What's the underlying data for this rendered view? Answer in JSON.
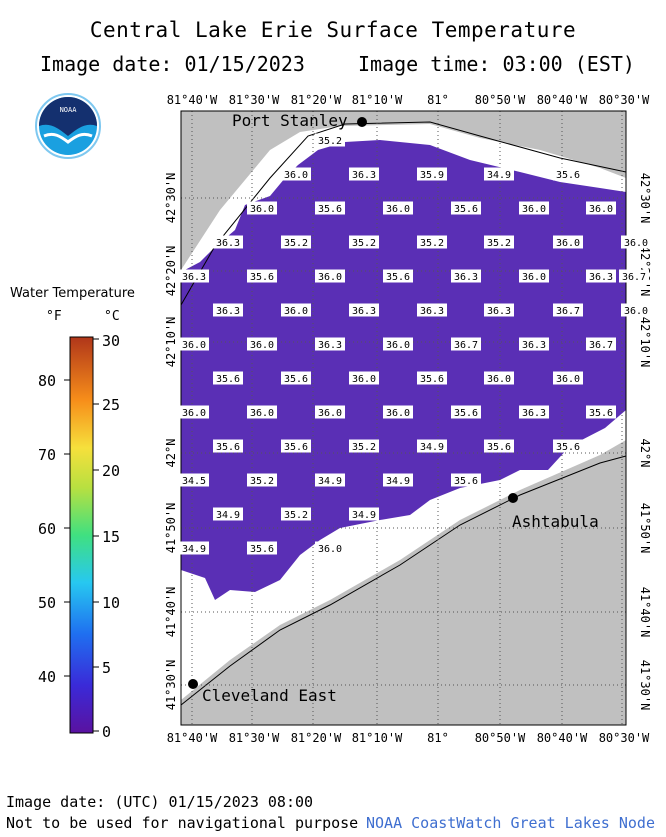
{
  "header": {
    "title": "Central Lake Erie Surface Temperature",
    "image_date": "Image date: 01/15/2023",
    "image_time": "Image time: 03:00 (EST)"
  },
  "logo": {
    "text": "NOAA"
  },
  "legend": {
    "title": "Water Temperature",
    "unit_f": "°F",
    "unit_c": "°C",
    "f_ticks": [
      "80",
      "70",
      "60",
      "50",
      "40"
    ],
    "c_ticks": [
      "30",
      "25",
      "20",
      "15",
      "10",
      "5",
      "0"
    ]
  },
  "axes": {
    "longitudes": [
      "81°40'W",
      "81°30'W",
      "81°20'W",
      "81°10'W",
      "81°",
      "80°50'W",
      "80°40'W",
      "80°30'W"
    ],
    "latitudes": [
      "42°30'N",
      "42°20'N",
      "42°10'N",
      "42°N",
      "41°50'N",
      "41°40'N",
      "41°30'N"
    ]
  },
  "places": [
    {
      "name": "Port Stanley"
    },
    {
      "name": "Ashtabula"
    },
    {
      "name": "Cleveland East"
    }
  ],
  "temperature_rows": [
    [
      "35.2"
    ],
    [
      "36.0",
      "36.3",
      "35.9",
      "34.9",
      "35.6"
    ],
    [
      "36.0",
      "35.6",
      "36.0",
      "35.6",
      "36.0",
      "36.0"
    ],
    [
      "36.3",
      "35.2",
      "35.2",
      "35.2",
      "35.2",
      "36.0",
      "36.0"
    ],
    [
      "36.3",
      "35.6",
      "36.0",
      "35.6",
      "36.3",
      "36.0",
      "36.3",
      "36.7"
    ],
    [
      "36.3",
      "36.0",
      "36.3",
      "36.3",
      "36.3",
      "36.7",
      "36.0"
    ],
    [
      "36.0",
      "36.0",
      "36.3",
      "36.0",
      "36.7",
      "36.3",
      "36.7"
    ],
    [
      "35.6",
      "35.6",
      "36.0",
      "35.6",
      "36.0",
      "36.0"
    ],
    [
      "36.0",
      "36.0",
      "36.0",
      "36.0",
      "35.6",
      "36.3",
      "35.6"
    ],
    [
      "35.6",
      "35.6",
      "35.2",
      "34.9",
      "35.6",
      "35.6"
    ],
    [
      "34.5",
      "35.2",
      "34.9",
      "34.9",
      "35.6"
    ],
    [
      "34.9",
      "35.2",
      "34.9"
    ],
    [
      "34.9",
      "35.6",
      "36.0"
    ]
  ],
  "footer": {
    "utc_date": "Image date: (UTC) 01/15/2023  08:00",
    "disclaimer": "Not to be used for navigational purpose",
    "credit": "NOAA CoastWatch Great Lakes Node"
  },
  "colors": {
    "water": "#5a2fb5",
    "land": "#c0c0c0",
    "coast_band": "#ffffff",
    "grid": "#555555"
  }
}
